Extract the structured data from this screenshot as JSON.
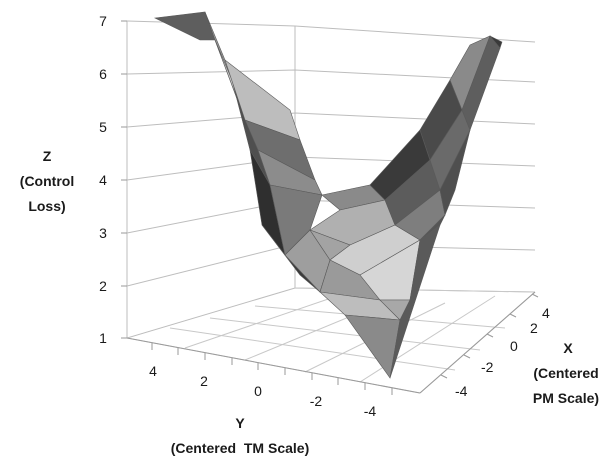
{
  "chart_data": {
    "type": "surface",
    "title": "",
    "zlabel_lines": [
      "Z",
      "(Control",
      "Loss)"
    ],
    "ylabel_lines": [
      "Y",
      "(Centered  TM Scale)"
    ],
    "xlabel_lines": [
      "X",
      "(Centered",
      "PM Scale)"
    ],
    "z_ticks": [
      1,
      2,
      3,
      4,
      5,
      6,
      7
    ],
    "y_ticks": [
      4,
      2,
      0,
      -2,
      -4
    ],
    "x_ticks": [
      4,
      2,
      0,
      -2,
      -4
    ],
    "zlim": [
      1,
      7
    ],
    "grid": true,
    "colors": {
      "surface": "#8a8a8a",
      "grid": "#bdbdbd",
      "axis": "#9a9a9a"
    }
  }
}
